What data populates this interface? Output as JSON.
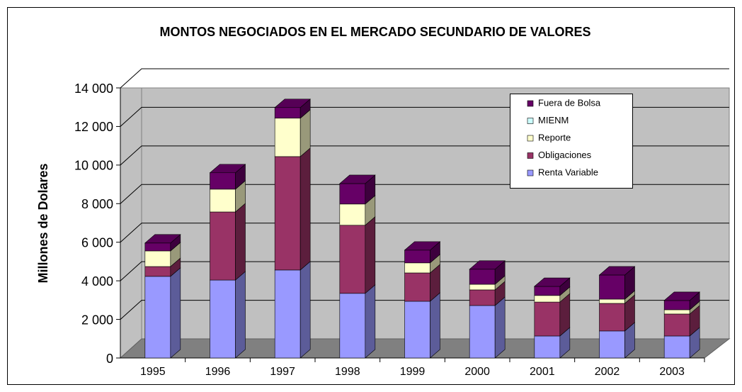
{
  "chart_data": {
    "type": "bar3d_stacked",
    "title": "MONTOS NEGOCIADOS EN EL MERCADO SECUNDARIO DE VALORES",
    "y_label": "Millones de Dolares",
    "categories": [
      "1995",
      "1996",
      "1997",
      "1998",
      "1999",
      "2000",
      "2001",
      "2002",
      "2003"
    ],
    "series": [
      {
        "name": "Renta Variable",
        "color": "#9999ff",
        "values": [
          4230,
          4040,
          4560,
          3350,
          2940,
          2720,
          1140,
          1400,
          1140
        ]
      },
      {
        "name": "Obligaciones",
        "color": "#993366",
        "values": [
          510,
          3530,
          5880,
          3530,
          1470,
          810,
          1760,
          1430,
          1140
        ]
      },
      {
        "name": "Reporte",
        "color": "#ffffcc",
        "values": [
          810,
          1180,
          1990,
          1100,
          520,
          290,
          340,
          220,
          220
        ]
      },
      {
        "name": "MIENM",
        "color": "#ccffff",
        "values": [
          0,
          0,
          0,
          0,
          0,
          0,
          0,
          0,
          0
        ]
      },
      {
        "name": "Fuera de Bolsa",
        "color": "#660066",
        "values": [
          410,
          850,
          550,
          1060,
          660,
          780,
          470,
          1250,
          480
        ]
      }
    ],
    "ylim": [
      0,
      14000
    ],
    "yticks": [
      0,
      {
        "value": 2000,
        "label": "2 000"
      },
      {
        "value": 4000,
        "label": "4 000"
      },
      {
        "value": 6000,
        "label": "6 000"
      },
      {
        "value": 8000,
        "label": "8 000"
      },
      {
        "value": 10000,
        "label": "10 000"
      },
      {
        "value": 12000,
        "label": "12 000"
      },
      {
        "value": 14000,
        "label": "14 000"
      }
    ],
    "grid": true,
    "stacked": true,
    "legend": "top-right"
  }
}
